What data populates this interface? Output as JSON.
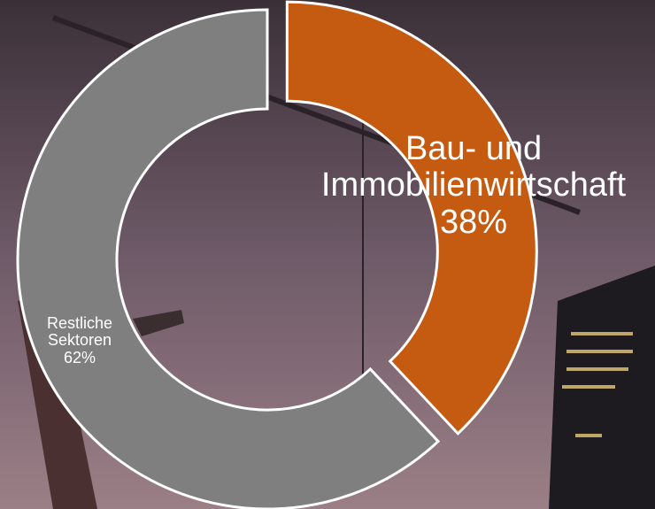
{
  "chart_data": {
    "type": "donut",
    "categories": [
      "Bau- und Immobilienwirtschaft",
      "Restliche Sektoren"
    ],
    "values": [
      38,
      62
    ],
    "value_labels": [
      "38%",
      "62%"
    ],
    "colors": [
      "#c55a11",
      "#7f7f7f"
    ],
    "exploded": [
      true,
      false
    ]
  }
}
